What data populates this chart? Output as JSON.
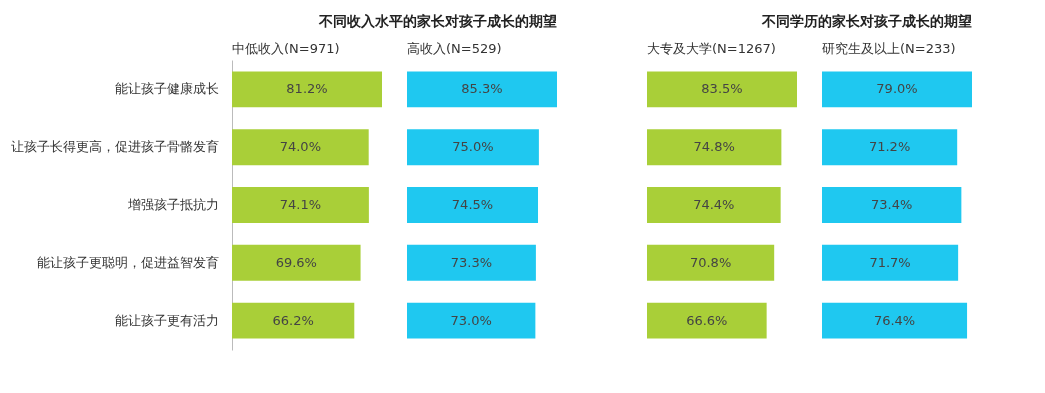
{
  "chart_data": [
    {
      "type": "bar",
      "orientation": "horizontal",
      "title": "不同收入水平的家长对孩子成长的期望",
      "categories": [
        "能让孩子健康成长",
        "让孩子长得更高，促进孩子骨骼发育",
        "增强孩子抵抗力",
        "能让孩子更聪明，促进益智发育",
        "能让孩子更有活力"
      ],
      "tick_labels": "y",
      "series": [
        {
          "name": "中低收入(N=971)",
          "color": "#a9cf38",
          "values": [
            81.2,
            74.0,
            74.1,
            69.6,
            66.2
          ],
          "value_labels": [
            "81.2%",
            "74.0%",
            "74.1%",
            "69.6%",
            "66.2%"
          ]
        }
      ]
    },
    {
      "type": "bar",
      "orientation": "horizontal",
      "tick_labels": false,
      "series": [
        {
          "name": "高收入(N=529)",
          "color": "#1fc8f0",
          "values": [
            85.3,
            75.0,
            74.5,
            73.3,
            73.0
          ],
          "value_labels": [
            "85.3%",
            "75.0%",
            "74.5%",
            "73.3%",
            "73.0%"
          ]
        }
      ]
    },
    {
      "type": "bar",
      "orientation": "horizontal",
      "title": "不同学历的家长对孩子成长的期望",
      "tick_labels": false,
      "series": [
        {
          "name": "大专及大学(N=1267)",
          "color": "#a9cf38",
          "values": [
            83.5,
            74.8,
            74.4,
            70.8,
            66.6
          ],
          "value_labels": [
            "83.5%",
            "74.8%",
            "74.4%",
            "70.8%",
            "66.6%"
          ]
        }
      ]
    },
    {
      "type": "bar",
      "orientation": "horizontal",
      "tick_labels": false,
      "series": [
        {
          "name": "研究生及以上(N=233)",
          "color": "#1fc8f0",
          "values": [
            79.0,
            71.2,
            73.4,
            71.7,
            76.4
          ],
          "value_labels": [
            "79.0%",
            "71.2%",
            "73.4%",
            "71.7%",
            "76.4%"
          ]
        }
      ]
    }
  ]
}
